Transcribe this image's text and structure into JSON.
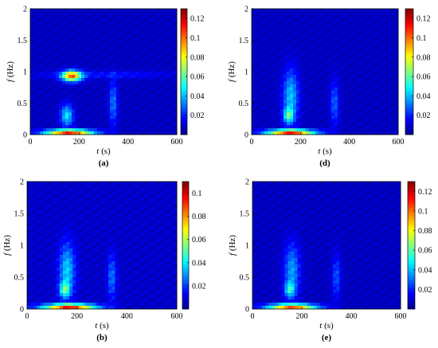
{
  "figure": {
    "xlabel_var": "t",
    "xlabel_unit": " (s)",
    "ylabel_var": "f",
    "ylabel_unit": " (Hz)"
  },
  "colormap": [
    "#00008f",
    "#0000ff",
    "#0080ff",
    "#00ffff",
    "#80ff80",
    "#ffff00",
    "#ff8000",
    "#ff0000",
    "#800000"
  ],
  "chart_data": [
    {
      "type": "heatmap",
      "label": "(a)",
      "xlim": [
        0,
        600
      ],
      "ylim": [
        0,
        2
      ],
      "xticks": [
        0,
        200,
        400,
        600
      ],
      "yticks": [
        0,
        0.5,
        1,
        1.5,
        2
      ],
      "colorbar": {
        "min": 0,
        "max": 0.13,
        "ticks": [
          0.02,
          0.04,
          0.06,
          0.08,
          0.1,
          0.12
        ]
      },
      "features": [
        {
          "t": 160,
          "f": 0.04,
          "st": 70,
          "sf": 0.025,
          "amp": 0.12
        },
        {
          "t": 170,
          "f": 0.93,
          "st": 28,
          "sf": 0.06,
          "amp": 0.09
        },
        {
          "t": 150,
          "f": 0.3,
          "st": 18,
          "sf": 0.12,
          "amp": 0.04
        },
        {
          "t": 340,
          "f": 0.5,
          "st": 12,
          "sf": 0.25,
          "amp": 0.025
        },
        {
          "t": 300,
          "f": 0.95,
          "st": 200,
          "sf": 0.04,
          "amp": 0.012
        }
      ]
    },
    {
      "type": "heatmap",
      "label": "(d)",
      "xlim": [
        0,
        600
      ],
      "ylim": [
        0,
        2
      ],
      "xticks": [
        0,
        200,
        400,
        600
      ],
      "yticks": [
        0,
        0.5,
        1,
        1.5,
        2
      ],
      "colorbar": {
        "min": 0,
        "max": 0.13,
        "ticks": [
          0.02,
          0.04,
          0.06,
          0.08,
          0.1,
          0.12
        ]
      },
      "features": [
        {
          "t": 160,
          "f": 0.04,
          "st": 70,
          "sf": 0.025,
          "amp": 0.12
        },
        {
          "t": 160,
          "f": 0.6,
          "st": 22,
          "sf": 0.3,
          "amp": 0.035
        },
        {
          "t": 150,
          "f": 0.3,
          "st": 14,
          "sf": 0.08,
          "amp": 0.04
        },
        {
          "t": 340,
          "f": 0.5,
          "st": 12,
          "sf": 0.25,
          "amp": 0.022
        }
      ]
    },
    {
      "type": "heatmap",
      "label": "(b)",
      "xlim": [
        0,
        600
      ],
      "ylim": [
        0,
        2
      ],
      "xticks": [
        0,
        200,
        400,
        600
      ],
      "yticks": [
        0,
        0.5,
        1,
        1.5,
        2
      ],
      "colorbar": {
        "min": 0,
        "max": 0.11,
        "ticks": [
          0.02,
          0.04,
          0.06,
          0.08,
          0.1
        ]
      },
      "features": [
        {
          "t": 170,
          "f": 0.04,
          "st": 75,
          "sf": 0.025,
          "amp": 0.1
        },
        {
          "t": 160,
          "f": 0.6,
          "st": 22,
          "sf": 0.3,
          "amp": 0.03
        },
        {
          "t": 150,
          "f": 0.3,
          "st": 14,
          "sf": 0.08,
          "amp": 0.035
        },
        {
          "t": 340,
          "f": 0.5,
          "st": 12,
          "sf": 0.25,
          "amp": 0.02
        }
      ]
    },
    {
      "type": "heatmap",
      "label": "(e)",
      "xlim": [
        0,
        600
      ],
      "ylim": [
        0,
        2
      ],
      "xticks": [
        0,
        200,
        400,
        600
      ],
      "yticks": [
        0,
        0.5,
        1,
        1.5,
        2
      ],
      "colorbar": {
        "min": 0,
        "max": 0.13,
        "ticks": [
          0.02,
          0.04,
          0.06,
          0.08,
          0.1,
          0.12
        ]
      },
      "features": [
        {
          "t": 160,
          "f": 0.04,
          "st": 70,
          "sf": 0.025,
          "amp": 0.11
        },
        {
          "t": 160,
          "f": 0.6,
          "st": 22,
          "sf": 0.3,
          "amp": 0.03
        },
        {
          "t": 150,
          "f": 0.3,
          "st": 14,
          "sf": 0.08,
          "amp": 0.035
        },
        {
          "t": 340,
          "f": 0.5,
          "st": 12,
          "sf": 0.25,
          "amp": 0.02
        }
      ]
    }
  ]
}
